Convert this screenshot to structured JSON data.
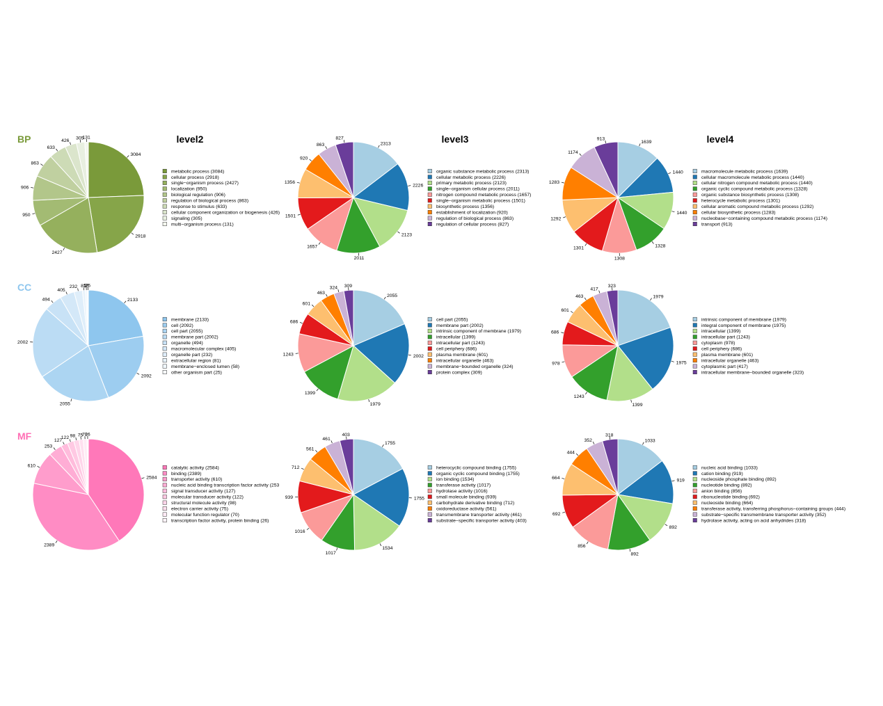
{
  "colors": {
    "bp_row_label": "#7a9a3a",
    "cc_row_label": "#8ec6ee",
    "mf_row_label": "#ff6eb4",
    "paired": [
      "#a6cee3",
      "#1f78b4",
      "#b2df8a",
      "#33a02c",
      "#fb9a99",
      "#e31a1c",
      "#fdbf6f",
      "#ff7f00",
      "#cab2d6",
      "#6a3d9a"
    ],
    "bp_shades": [
      "#7a9a3a",
      "#86a549",
      "#95b05d",
      "#a3bb73",
      "#b2c68a",
      "#c0d0a0",
      "#cddbb6",
      "#dbe5cc",
      "#e8efe0",
      "#f4f7ef"
    ],
    "cc_shades": [
      "#8ec6ee",
      "#9dcdf0",
      "#acd5f2",
      "#bbdcf4",
      "#c8e2f6",
      "#d4e8f8",
      "#dfeefa",
      "#e8f3fb",
      "#f0f7fd",
      "#f7fbfe"
    ],
    "mf_shades": [
      "#ff78b9",
      "#ff8cc4",
      "#ff9dcc",
      "#ffadd5",
      "#ffbcdc",
      "#ffc9e3",
      "#ffd5ea",
      "#ffe0ef",
      "#ffebf5",
      "#fff4f9"
    ]
  },
  "column_titles": [
    "level2",
    "level3",
    "level4"
  ],
  "row_labels": [
    "BP",
    "CC",
    "MF"
  ],
  "chart_data": [
    {
      "type": "pie",
      "row": "BP",
      "title": "level2",
      "palette": "bp_shades",
      "categories": [
        "metabolic process",
        "cellular process",
        "single−organism process",
        "localization",
        "biological regulation",
        "regulation of biological process",
        "response to stimulus",
        "cellular component organization or biogenesis",
        "signaling",
        "multi−organism process"
      ],
      "values": [
        3084,
        2918,
        2427,
        950,
        906,
        863,
        633,
        426,
        305,
        131
      ],
      "legend": [
        "metabolic process (3084)",
        "cellular process (2918)",
        "single−organism process (2427)",
        "localization (950)",
        "biological regulation (906)",
        "regulation of biological process (863)",
        "response to stimulus (633)",
        "cellular component organization or biogenesis (426)",
        "signaling (305)",
        "multi−organism process (131)"
      ]
    },
    {
      "type": "pie",
      "row": "BP",
      "title": "level3",
      "palette": "paired",
      "categories": [
        "organic substance metabolic process",
        "cellular metabolic process",
        "primary metabolic process",
        "single−organism cellular process",
        "nitrogen compound metabolic process",
        "single−organism metabolic process",
        "biosynthetic process",
        "establishment of localization",
        "regulation of biological process",
        "regulation of cellular process"
      ],
      "values": [
        2313,
        2226,
        2123,
        2011,
        1657,
        1501,
        1356,
        920,
        863,
        827
      ],
      "legend": [
        "organic substance metabolic process (2313)",
        "cellular metabolic process (2226)",
        "primary metabolic process (2123)",
        "single−organism cellular process (2011)",
        "nitrogen compound metabolic process (1657)",
        "single−organism metabolic process (1501)",
        "biosynthetic process (1356)",
        "establishment of localization (920)",
        "regulation of biological process (863)",
        "regulation of cellular process (827)"
      ]
    },
    {
      "type": "pie",
      "row": "BP",
      "title": "level4",
      "palette": "paired",
      "categories": [
        "macromolecule metabolic process",
        "cellular macromolecule metabolic process",
        "cellular nitrogen compound metabolic process",
        "organic cyclic compound metabolic process",
        "organic substance biosynthetic process",
        "heterocycle metabolic process",
        "cellular aromatic compound metabolic process",
        "cellular biosynthetic process",
        "nucleobase−containing compound metabolic process",
        "transport"
      ],
      "values": [
        1639,
        1440,
        1440,
        1328,
        1308,
        1301,
        1292,
        1283,
        1174,
        913
      ],
      "legend": [
        "macromolecule metabolic process (1639)",
        "cellular macromolecule metabolic process (1440)",
        "cellular nitrogen compound metabolic process (1440)",
        "organic cyclic compound metabolic process (1328)",
        "organic substance biosynthetic process (1308)",
        "heterocycle metabolic process (1301)",
        "cellular aromatic compound metabolic process (1292)",
        "cellular biosynthetic process (1283)",
        "nucleobase−containing compound metabolic process (1174)",
        "transport (913)"
      ]
    },
    {
      "type": "pie",
      "row": "CC",
      "title": "",
      "palette": "cc_shades",
      "categories": [
        "membrane",
        "cell",
        "cell part",
        "membrane part",
        "organelle",
        "macromolecular complex",
        "organelle part",
        "extracellular region",
        "membrane−enclosed lumen",
        "other organism part"
      ],
      "values": [
        2133,
        2092,
        2055,
        2002,
        494,
        405,
        232,
        81,
        58,
        25
      ],
      "legend": [
        "membrane (2133)",
        "cell (2092)",
        "cell part (2055)",
        "membrane part (2002)",
        "organelle (494)",
        "macromolecular complex (405)",
        "organelle part (232)",
        "extracellular region (81)",
        "membrane−enclosed lumen (58)",
        "other organism part (25)"
      ]
    },
    {
      "type": "pie",
      "row": "CC",
      "title": "",
      "palette": "paired",
      "categories": [
        "cell part",
        "membrane part",
        "intrinsic component of membrane",
        "intracellular",
        "intracellular part",
        "cell periphery",
        "plasma membrane",
        "intracellular organelle",
        "membrane−bounded organelle",
        "protein complex"
      ],
      "values": [
        2055,
        2002,
        1979,
        1399,
        1243,
        686,
        601,
        463,
        324,
        309
      ],
      "legend": [
        "cell part (2055)",
        "membrane part (2002)",
        "intrinsic component of membrane (1979)",
        "intracellular (1399)",
        "intracellular part (1243)",
        "cell periphery (686)",
        "plasma membrane (601)",
        "intracellular organelle (463)",
        "membrane−bounded organelle (324)",
        "protein complex (309)"
      ]
    },
    {
      "type": "pie",
      "row": "CC",
      "title": "",
      "palette": "paired",
      "categories": [
        "intrinsic component of membrane",
        "integral component of membrane",
        "intracellular",
        "intracellular part",
        "cytoplasm",
        "cell periphery",
        "plasma membrane",
        "intracellular organelle",
        "cytoplasmic part",
        "intracellular membrane−bounded organelle"
      ],
      "values": [
        1979,
        1975,
        1399,
        1243,
        978,
        686,
        601,
        463,
        417,
        323
      ],
      "legend": [
        "intrinsic component of membrane (1979)",
        "integral component of membrane (1975)",
        "intracellular (1399)",
        "intracellular part (1243)",
        "cytoplasm (978)",
        "cell periphery (686)",
        "plasma membrane (601)",
        "intracellular organelle (463)",
        "cytoplasmic part (417)",
        "intracellular membrane−bounded organelle (323)"
      ]
    },
    {
      "type": "pie",
      "row": "MF",
      "title": "",
      "palette": "mf_shades",
      "categories": [
        "catalytic activity",
        "binding",
        "transporter activity",
        "nucleic acid binding transcription factor activity",
        "signal transducer activity",
        "molecular transducer activity",
        "structural molecule activity",
        "electron carrier activity",
        "molecular function regulator",
        "transcription factor activity, protein binding"
      ],
      "values": [
        2584,
        2389,
        610,
        253,
        127,
        122,
        98,
        75,
        70,
        26
      ],
      "legend": [
        "catalytic activity (2584)",
        "binding (2389)",
        "transporter activity (610)",
        "nucleic acid binding transcription factor activity (253",
        "signal transducer activity (127)",
        "molecular transducer activity (122)",
        "structural molecule activity (98)",
        "electron carrier activity (75)",
        "molecular function regulator (70)",
        "transcription factor activity, protein binding (26)"
      ]
    },
    {
      "type": "pie",
      "row": "MF",
      "title": "",
      "palette": "paired",
      "categories": [
        "heterocyclic compound binding",
        "organic cyclic compound binding",
        "ion binding",
        "transferase activity",
        "hydrolase activity",
        "small molecule binding",
        "carbohydrate derivative binding",
        "oxidoreductase activity",
        "transmembrane transporter activity",
        "substrate−specific transporter activity"
      ],
      "values": [
        1755,
        1755,
        1534,
        1017,
        1016,
        939,
        712,
        561,
        461,
        403
      ],
      "legend": [
        "heterocyclic compound binding (1755)",
        "organic cyclic compound binding (1755)",
        "ion binding (1534)",
        "transferase activity (1017)",
        "hydrolase activity (1016)",
        "small molecule binding (939)",
        "carbohydrate derivative binding (712)",
        "oxidoreductase activity (561)",
        "transmembrane transporter activity (461)",
        "substrate−specific transporter activity (403)"
      ]
    },
    {
      "type": "pie",
      "row": "MF",
      "title": "",
      "palette": "paired",
      "categories": [
        "nucleic acid binding",
        "cation binding",
        "nucleoside phosphate binding",
        "nucleotide binding",
        "anion binding",
        "ribonucleotide binding",
        "nucleoside binding",
        "transferase activity, transferring phosphorus−containing groups",
        "substrate−specific transmembrane transporter activity",
        "hydrolase activity, acting on acid anhydrides"
      ],
      "values": [
        1033,
        919,
        892,
        892,
        856,
        692,
        664,
        444,
        352,
        318
      ],
      "legend": [
        "nucleic acid binding (1033)",
        "cation binding (919)",
        "nucleoside phosphate binding (892)",
        "nucleotide binding (892)",
        "anion binding (856)",
        "ribonucleotide binding (692)",
        "nucleoside binding (664)",
        "transferase activity, transferring phosphorus−containing groups (444)",
        "substrate−specific transmembrane transporter activity (352)",
        "hydrolase activity, acting on acid anhydrides (318)"
      ]
    }
  ]
}
